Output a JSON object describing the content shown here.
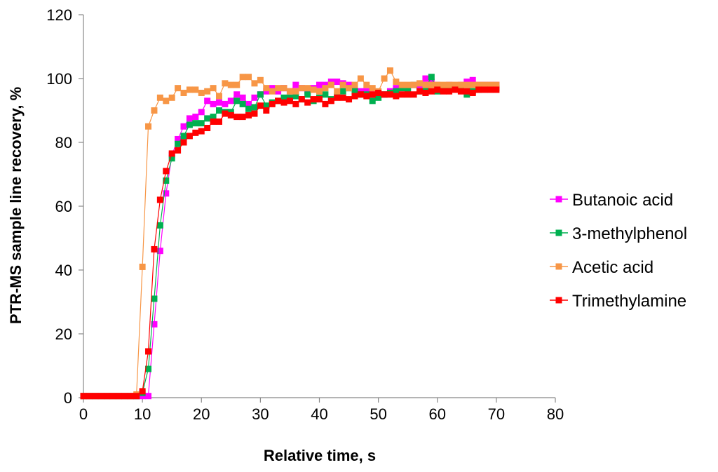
{
  "chart_data": {
    "type": "line",
    "title": "",
    "xlabel": "Relative time, s",
    "ylabel": "PTR-MS sample line recovery, %",
    "xlim": [
      0,
      80
    ],
    "ylim": [
      0,
      120
    ],
    "xticks": [
      0,
      10,
      20,
      30,
      40,
      50,
      60,
      70,
      80
    ],
    "yticks": [
      0,
      20,
      40,
      60,
      80,
      100,
      120
    ],
    "grid": false,
    "legend_position": "right",
    "series": [
      {
        "name": "Butanoic acid",
        "color": "#FF00FF",
        "x": [
          0,
          1,
          2,
          3,
          4,
          5,
          6,
          7,
          8,
          9,
          10,
          11,
          12,
          13,
          14,
          15,
          16,
          17,
          18,
          19,
          20,
          21,
          22,
          23,
          24,
          25,
          26,
          27,
          28,
          29,
          30,
          31,
          32,
          33,
          34,
          35,
          36,
          37,
          38,
          39,
          40,
          41,
          42,
          43,
          44,
          45,
          46,
          47,
          48,
          49,
          50,
          51,
          52,
          53,
          54,
          55,
          56,
          57,
          58,
          59,
          60,
          61,
          62,
          63,
          64,
          65,
          66,
          67,
          68,
          69,
          70
        ],
        "values": [
          0.5,
          0.5,
          0.5,
          0.5,
          0.5,
          0.5,
          0.5,
          0.5,
          0.5,
          0.5,
          0.5,
          0.5,
          23,
          46,
          64,
          76,
          81,
          85,
          87.5,
          88,
          89.5,
          93,
          92,
          92.5,
          92,
          93,
          95,
          94,
          92,
          94,
          95,
          96,
          97,
          96,
          97,
          96,
          98,
          97,
          96,
          97,
          98,
          98,
          99,
          99,
          98.5,
          98,
          97,
          96,
          96,
          95,
          95,
          95,
          96,
          97,
          97,
          97,
          98,
          98,
          100,
          99,
          98,
          97,
          98,
          97,
          98,
          99,
          99.5,
          98,
          98,
          98,
          98
        ]
      },
      {
        "name": "3-methylphenol",
        "color": "#00B050",
        "x": [
          0,
          1,
          2,
          3,
          4,
          5,
          6,
          7,
          8,
          9,
          10,
          11,
          12,
          13,
          14,
          15,
          16,
          17,
          18,
          19,
          20,
          21,
          22,
          23,
          24,
          25,
          26,
          27,
          28,
          29,
          30,
          31,
          32,
          33,
          34,
          35,
          36,
          37,
          38,
          39,
          40,
          41,
          42,
          43,
          44,
          45,
          46,
          47,
          48,
          49,
          50,
          51,
          52,
          53,
          54,
          55,
          56,
          57,
          58,
          59,
          60,
          61,
          62,
          63,
          64,
          65,
          66,
          67,
          68,
          69,
          70
        ],
        "values": [
          0.5,
          0.5,
          0.5,
          0.5,
          0.5,
          0.5,
          0.5,
          0.5,
          0.5,
          0.5,
          1.5,
          9,
          31,
          54,
          68,
          75,
          79.5,
          82,
          85.5,
          86,
          86,
          87.5,
          88,
          90,
          89.5,
          89.5,
          93,
          92,
          90.5,
          91,
          95,
          91.5,
          92.5,
          93,
          94,
          94,
          94.5,
          93.5,
          95,
          93,
          94,
          95,
          93.5,
          94.5,
          96,
          97,
          96,
          95,
          95,
          93,
          94,
          95,
          95.5,
          96,
          97,
          96.5,
          98,
          96,
          97,
          100.5,
          96,
          96.5,
          97,
          97,
          96.5,
          95,
          96,
          96.5,
          97,
          97,
          97
        ]
      },
      {
        "name": "Acetic acid",
        "color": "#F79646",
        "x": [
          0,
          1,
          2,
          3,
          4,
          5,
          6,
          7,
          8,
          9,
          10,
          11,
          12,
          13,
          14,
          15,
          16,
          17,
          18,
          19,
          20,
          21,
          22,
          23,
          24,
          25,
          26,
          27,
          28,
          29,
          30,
          31,
          32,
          33,
          34,
          35,
          36,
          37,
          38,
          39,
          40,
          41,
          42,
          43,
          44,
          45,
          46,
          47,
          48,
          49,
          50,
          51,
          52,
          53,
          54,
          55,
          56,
          57,
          58,
          59,
          60,
          61,
          62,
          63,
          64,
          65,
          66,
          67,
          68,
          69,
          70
        ],
        "values": [
          0.5,
          0.5,
          0.5,
          0.5,
          0.5,
          0.5,
          0.5,
          0.5,
          0.5,
          1,
          41,
          85,
          90,
          94,
          93,
          94,
          97,
          95.5,
          96.5,
          96.5,
          95.5,
          96,
          97,
          94.5,
          98.5,
          98,
          98,
          100.5,
          100.5,
          98.5,
          99.5,
          97,
          96,
          97,
          97,
          96,
          96,
          97,
          97,
          96.5,
          96,
          97,
          98,
          96,
          98,
          97,
          98,
          100,
          98,
          97,
          96,
          100,
          102.5,
          99,
          98,
          98,
          98,
          98.5,
          98,
          98,
          98,
          98,
          98,
          98,
          98,
          98,
          98,
          98,
          98,
          98,
          98
        ]
      },
      {
        "name": "Trimethylamine",
        "color": "#FF0000",
        "x": [
          0,
          1,
          2,
          3,
          4,
          5,
          6,
          7,
          8,
          9,
          10,
          11,
          12,
          13,
          14,
          15,
          16,
          17,
          18,
          19,
          20,
          21,
          22,
          23,
          24,
          25,
          26,
          27,
          28,
          29,
          30,
          31,
          32,
          33,
          34,
          35,
          36,
          37,
          38,
          39,
          40,
          41,
          42,
          43,
          44,
          45,
          46,
          47,
          48,
          49,
          50,
          51,
          52,
          53,
          54,
          55,
          56,
          57,
          58,
          59,
          60,
          61,
          62,
          63,
          64,
          65,
          66,
          67,
          68,
          69,
          70
        ],
        "values": [
          0.5,
          0.5,
          0.5,
          0.5,
          0.5,
          0.5,
          0.5,
          0.5,
          0.5,
          0.5,
          2,
          14.5,
          46.5,
          62,
          71,
          76.5,
          77.5,
          80,
          82,
          83,
          83.5,
          84.5,
          86.5,
          86.5,
          89,
          88.5,
          88,
          88,
          88.5,
          89,
          91.5,
          90,
          92,
          93,
          92.5,
          93,
          92,
          93.5,
          92.5,
          93.5,
          93.5,
          92,
          93,
          94,
          94,
          93.5,
          94.5,
          95,
          94.5,
          95,
          95.5,
          95,
          95,
          94.5,
          95,
          95,
          95,
          96,
          95.5,
          96,
          96.5,
          96,
          96,
          96.5,
          96,
          96,
          95.5,
          96.5,
          96.5,
          96.5,
          96.5
        ]
      }
    ]
  }
}
